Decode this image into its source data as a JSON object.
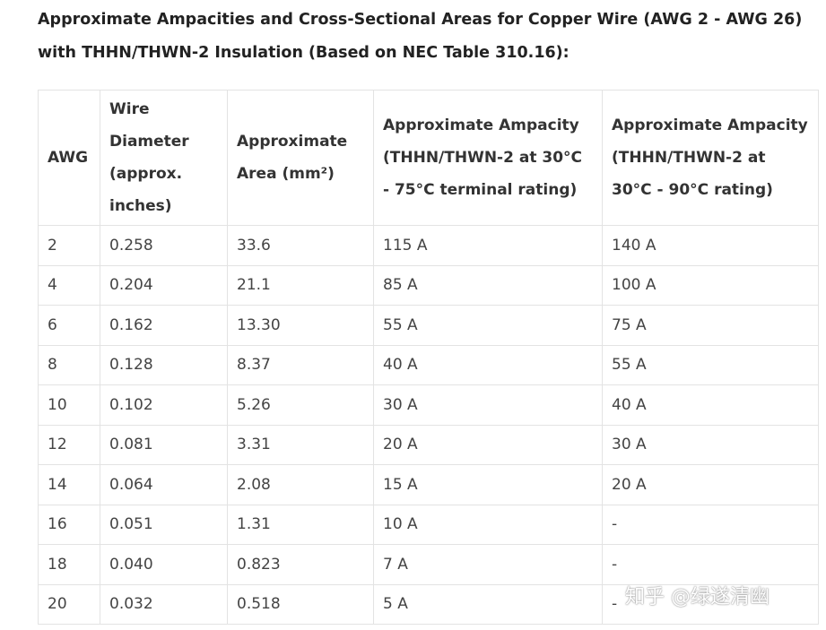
{
  "title": "Approximate Ampacities and Cross-Sectional Areas for Copper Wire (AWG 2 - AWG 26) with THHN/THWN-2 Insulation (Based on NEC Table 310.16):",
  "table": {
    "headers": [
      "AWG",
      "Wire Diameter (approx. inches)",
      "Approximate Area (mm²)",
      "Approximate Ampacity (THHN/THWN-2 at 30°C - 75°C terminal rating)",
      "Approximate Ampacity (THHN/THWN-2 at 30°C - 90°C rating)"
    ],
    "rows": [
      [
        "2",
        "0.258",
        "33.6",
        "115 A",
        "140 A"
      ],
      [
        "4",
        "0.204",
        "21.1",
        "85 A",
        "100 A"
      ],
      [
        "6",
        "0.162",
        "13.30",
        "55 A",
        "75 A"
      ],
      [
        "8",
        "0.128",
        "8.37",
        "40 A",
        "55 A"
      ],
      [
        "10",
        "0.102",
        "5.26",
        "30 A",
        "40 A"
      ],
      [
        "12",
        "0.081",
        "3.31",
        "20 A",
        "30 A"
      ],
      [
        "14",
        "0.064",
        "2.08",
        "15 A",
        "20 A"
      ],
      [
        "16",
        "0.051",
        "1.31",
        "10 A",
        "-"
      ],
      [
        "18",
        "0.040",
        "0.823",
        "7 A",
        "-"
      ],
      [
        "20",
        "0.032",
        "0.518",
        "5 A",
        "-"
      ]
    ]
  },
  "watermark": "知乎 @绿遂清幽"
}
